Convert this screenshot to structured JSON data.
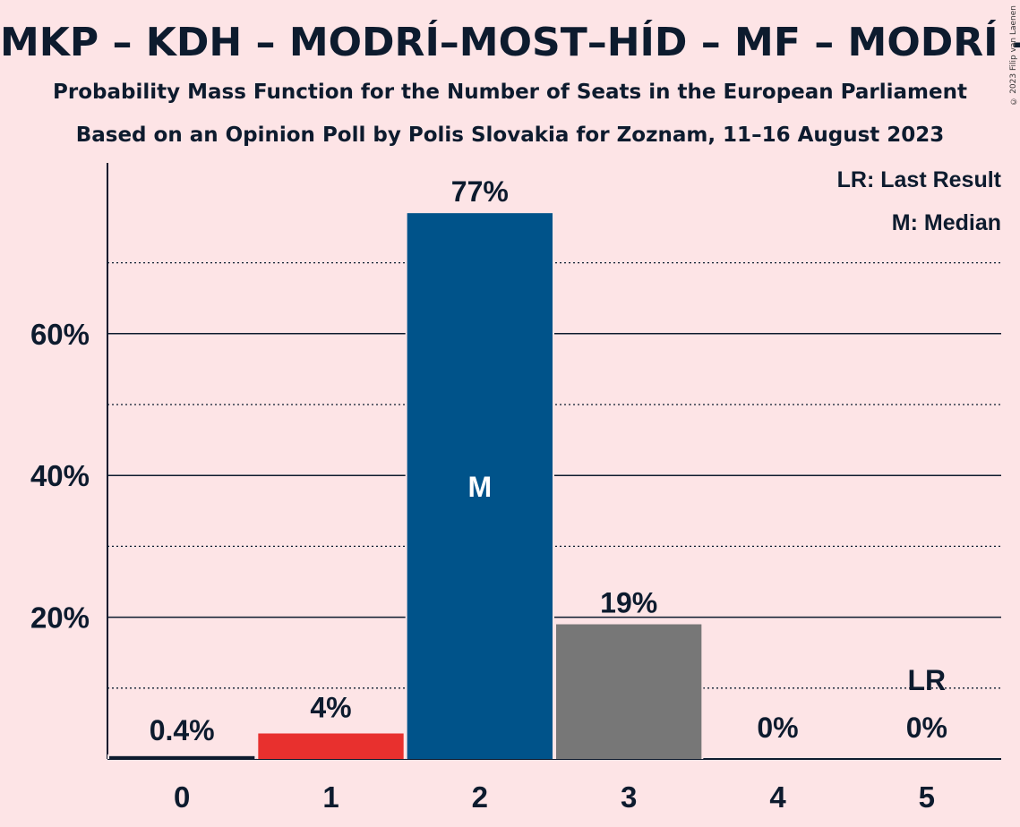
{
  "header": {
    "title": "MKP – KDH – MODRÍ–MOST–HÍD – MF – MODRÍ – M",
    "subtitle": "Probability Mass Function for the Number of Seats in the European Parliament",
    "source": "Based on an Opinion Poll by Polis Slovakia for Zoznam, 11–16 August 2023",
    "copyright": "© 2023 Filip van Laenen"
  },
  "legend": {
    "last_result": "LR: Last Result",
    "median": "M: Median"
  },
  "chart_data": {
    "type": "bar",
    "categories": [
      "0",
      "1",
      "2",
      "3",
      "4",
      "5"
    ],
    "values": [
      0.4,
      3.6,
      77,
      19,
      0,
      0
    ],
    "value_labels": [
      "0.4%",
      "4%",
      "77%",
      "19%",
      "0%",
      "0%"
    ],
    "bar_colors": [
      "#0d1b2e",
      "#e8302e",
      "#00538a",
      "#777777",
      "#777777",
      "#777777"
    ],
    "median_category": "2",
    "median_marker": "M",
    "last_result_category": "5",
    "last_result_marker": "LR",
    "ylim": [
      0,
      84
    ],
    "yticks": [
      20,
      40,
      60
    ],
    "ytick_labels": [
      "20%",
      "40%",
      "60%"
    ],
    "minor_gridlines": [
      10,
      30,
      50,
      70
    ],
    "grid": true,
    "legend_position": "top-right"
  }
}
